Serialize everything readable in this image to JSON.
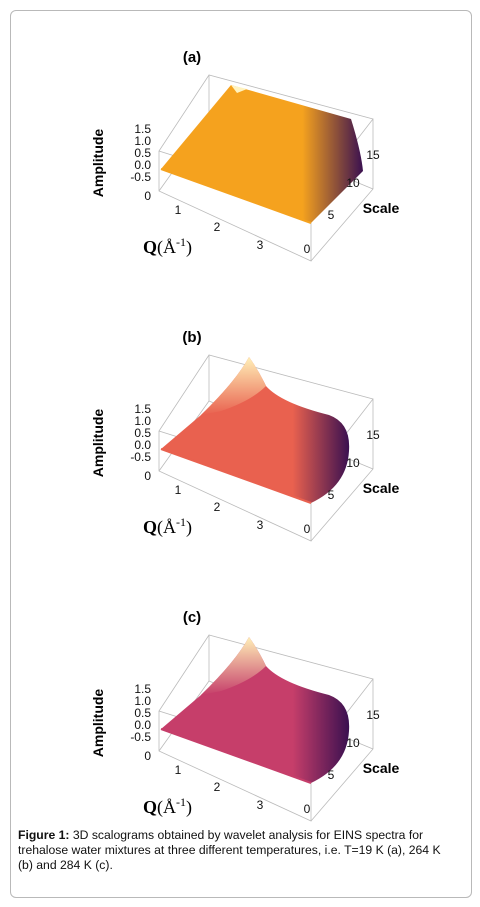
{
  "panels": [
    {
      "id": "a",
      "label": "(a)",
      "color": "#f5a21e",
      "dark": "#3a1050",
      "light": "#fff3c0"
    },
    {
      "id": "b",
      "label": "(b)",
      "color": "#e9614f",
      "dark": "#3a1050",
      "light": "#fff0b8"
    },
    {
      "id": "c",
      "label": "(c)",
      "color": "#c63e6a",
      "dark": "#3a1050",
      "light": "#fff0b8"
    }
  ],
  "axes": {
    "amplitude_label": "Amplitude",
    "amplitude_ticks": [
      "1.5",
      "1.0",
      "0.5",
      "0.0",
      "-0.5"
    ],
    "q_ticks": [
      "0",
      "1",
      "2",
      "3"
    ],
    "q_label_main": "Q",
    "q_label_unit": "(Å",
    "q_label_sup": "-1",
    "q_label_close": ")",
    "scale_label": "Scale",
    "scale_ticks": [
      "15",
      "10",
      "5",
      "0"
    ]
  },
  "caption": {
    "prefix": "Figure 1:",
    "text": " 3D scalograms obtained by wavelet analysis for EINS spectra for trehalose water mixtures at three different temperatures, i.e. T=19 K (a), 264 K (b) and 284 K (c)."
  }
}
